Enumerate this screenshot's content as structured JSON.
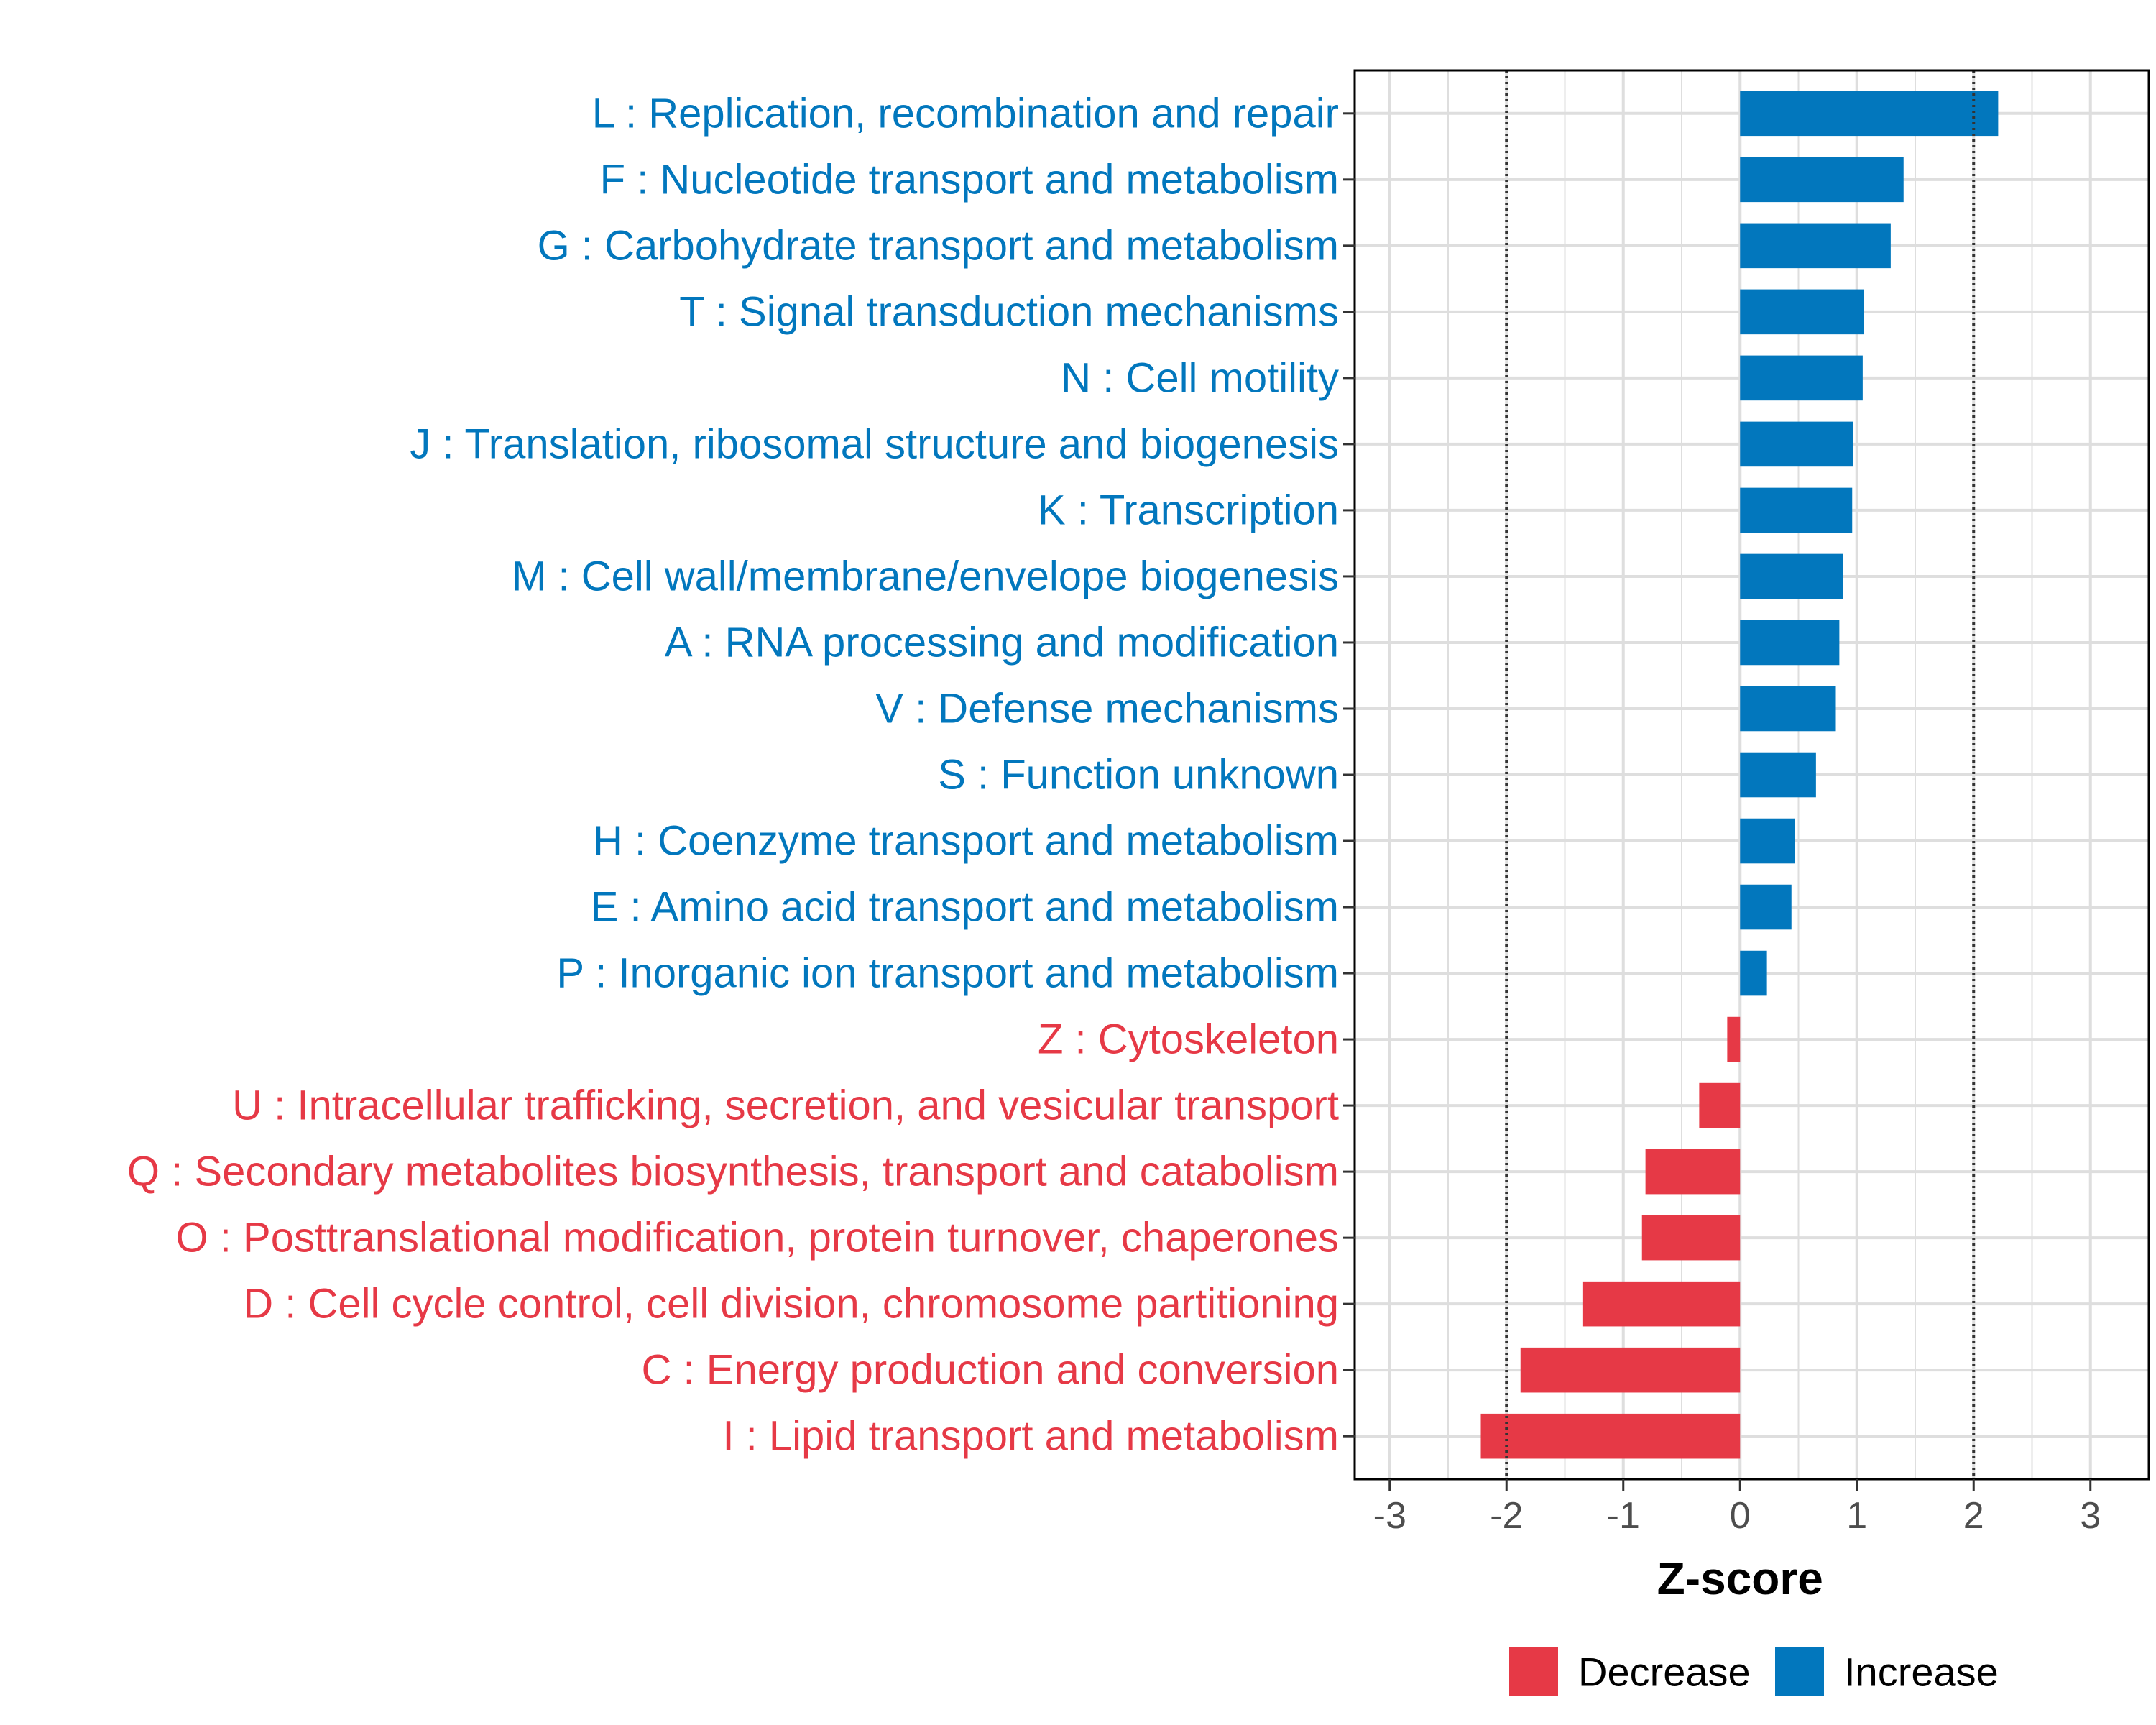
{
  "chart_data": {
    "type": "bar",
    "orientation": "horizontal",
    "xlabel": "Z-score",
    "xlim": [
      -3.3,
      3.5
    ],
    "xticks": [
      -3,
      -2,
      -1,
      0,
      1,
      2,
      3
    ],
    "xtick_labels": [
      "-3",
      "-2",
      "-1",
      "0",
      "1",
      "2",
      "3"
    ],
    "reference_lines": [
      -2,
      2
    ],
    "grid": true,
    "legend_position": "bottom",
    "colors": {
      "Decrease": "#e63946",
      "Increase": "#0277bd"
    },
    "legend": [
      {
        "label": "Decrease",
        "color": "#e63946"
      },
      {
        "label": "Increase",
        "color": "#0277bd"
      }
    ],
    "categories": [
      "L : Replication, recombination and repair",
      "F : Nucleotide transport and metabolism",
      "G : Carbohydrate transport and metabolism",
      "T : Signal transduction mechanisms",
      "N : Cell motility",
      "J : Translation, ribosomal structure and biogenesis",
      "K : Transcription",
      "M : Cell wall/membrane/envelope biogenesis",
      "A : RNA processing and modification",
      "V : Defense mechanisms",
      "S : Function unknown",
      "H : Coenzyme transport and metabolism",
      "E : Amino acid transport and metabolism",
      "P : Inorganic ion transport and metabolism",
      "Z : Cytoskeleton",
      "U : Intracellular trafficking, secretion, and vesicular transport",
      "Q : Secondary metabolites biosynthesis, transport and catabolism",
      "O : Posttranslational modification, protein turnover, chaperones",
      "D : Cell cycle control, cell division, chromosome partitioning",
      "C : Energy production and conversion",
      "I : Lipid transport and metabolism"
    ],
    "values": [
      2.21,
      1.4,
      1.29,
      1.06,
      1.05,
      0.97,
      0.96,
      0.88,
      0.85,
      0.82,
      0.65,
      0.47,
      0.44,
      0.23,
      -0.11,
      -0.35,
      -0.81,
      -0.84,
      -1.35,
      -1.88,
      -2.22
    ],
    "groups": [
      "Increase",
      "Increase",
      "Increase",
      "Increase",
      "Increase",
      "Increase",
      "Increase",
      "Increase",
      "Increase",
      "Increase",
      "Increase",
      "Increase",
      "Increase",
      "Increase",
      "Decrease",
      "Decrease",
      "Decrease",
      "Decrease",
      "Decrease",
      "Decrease",
      "Decrease"
    ]
  }
}
